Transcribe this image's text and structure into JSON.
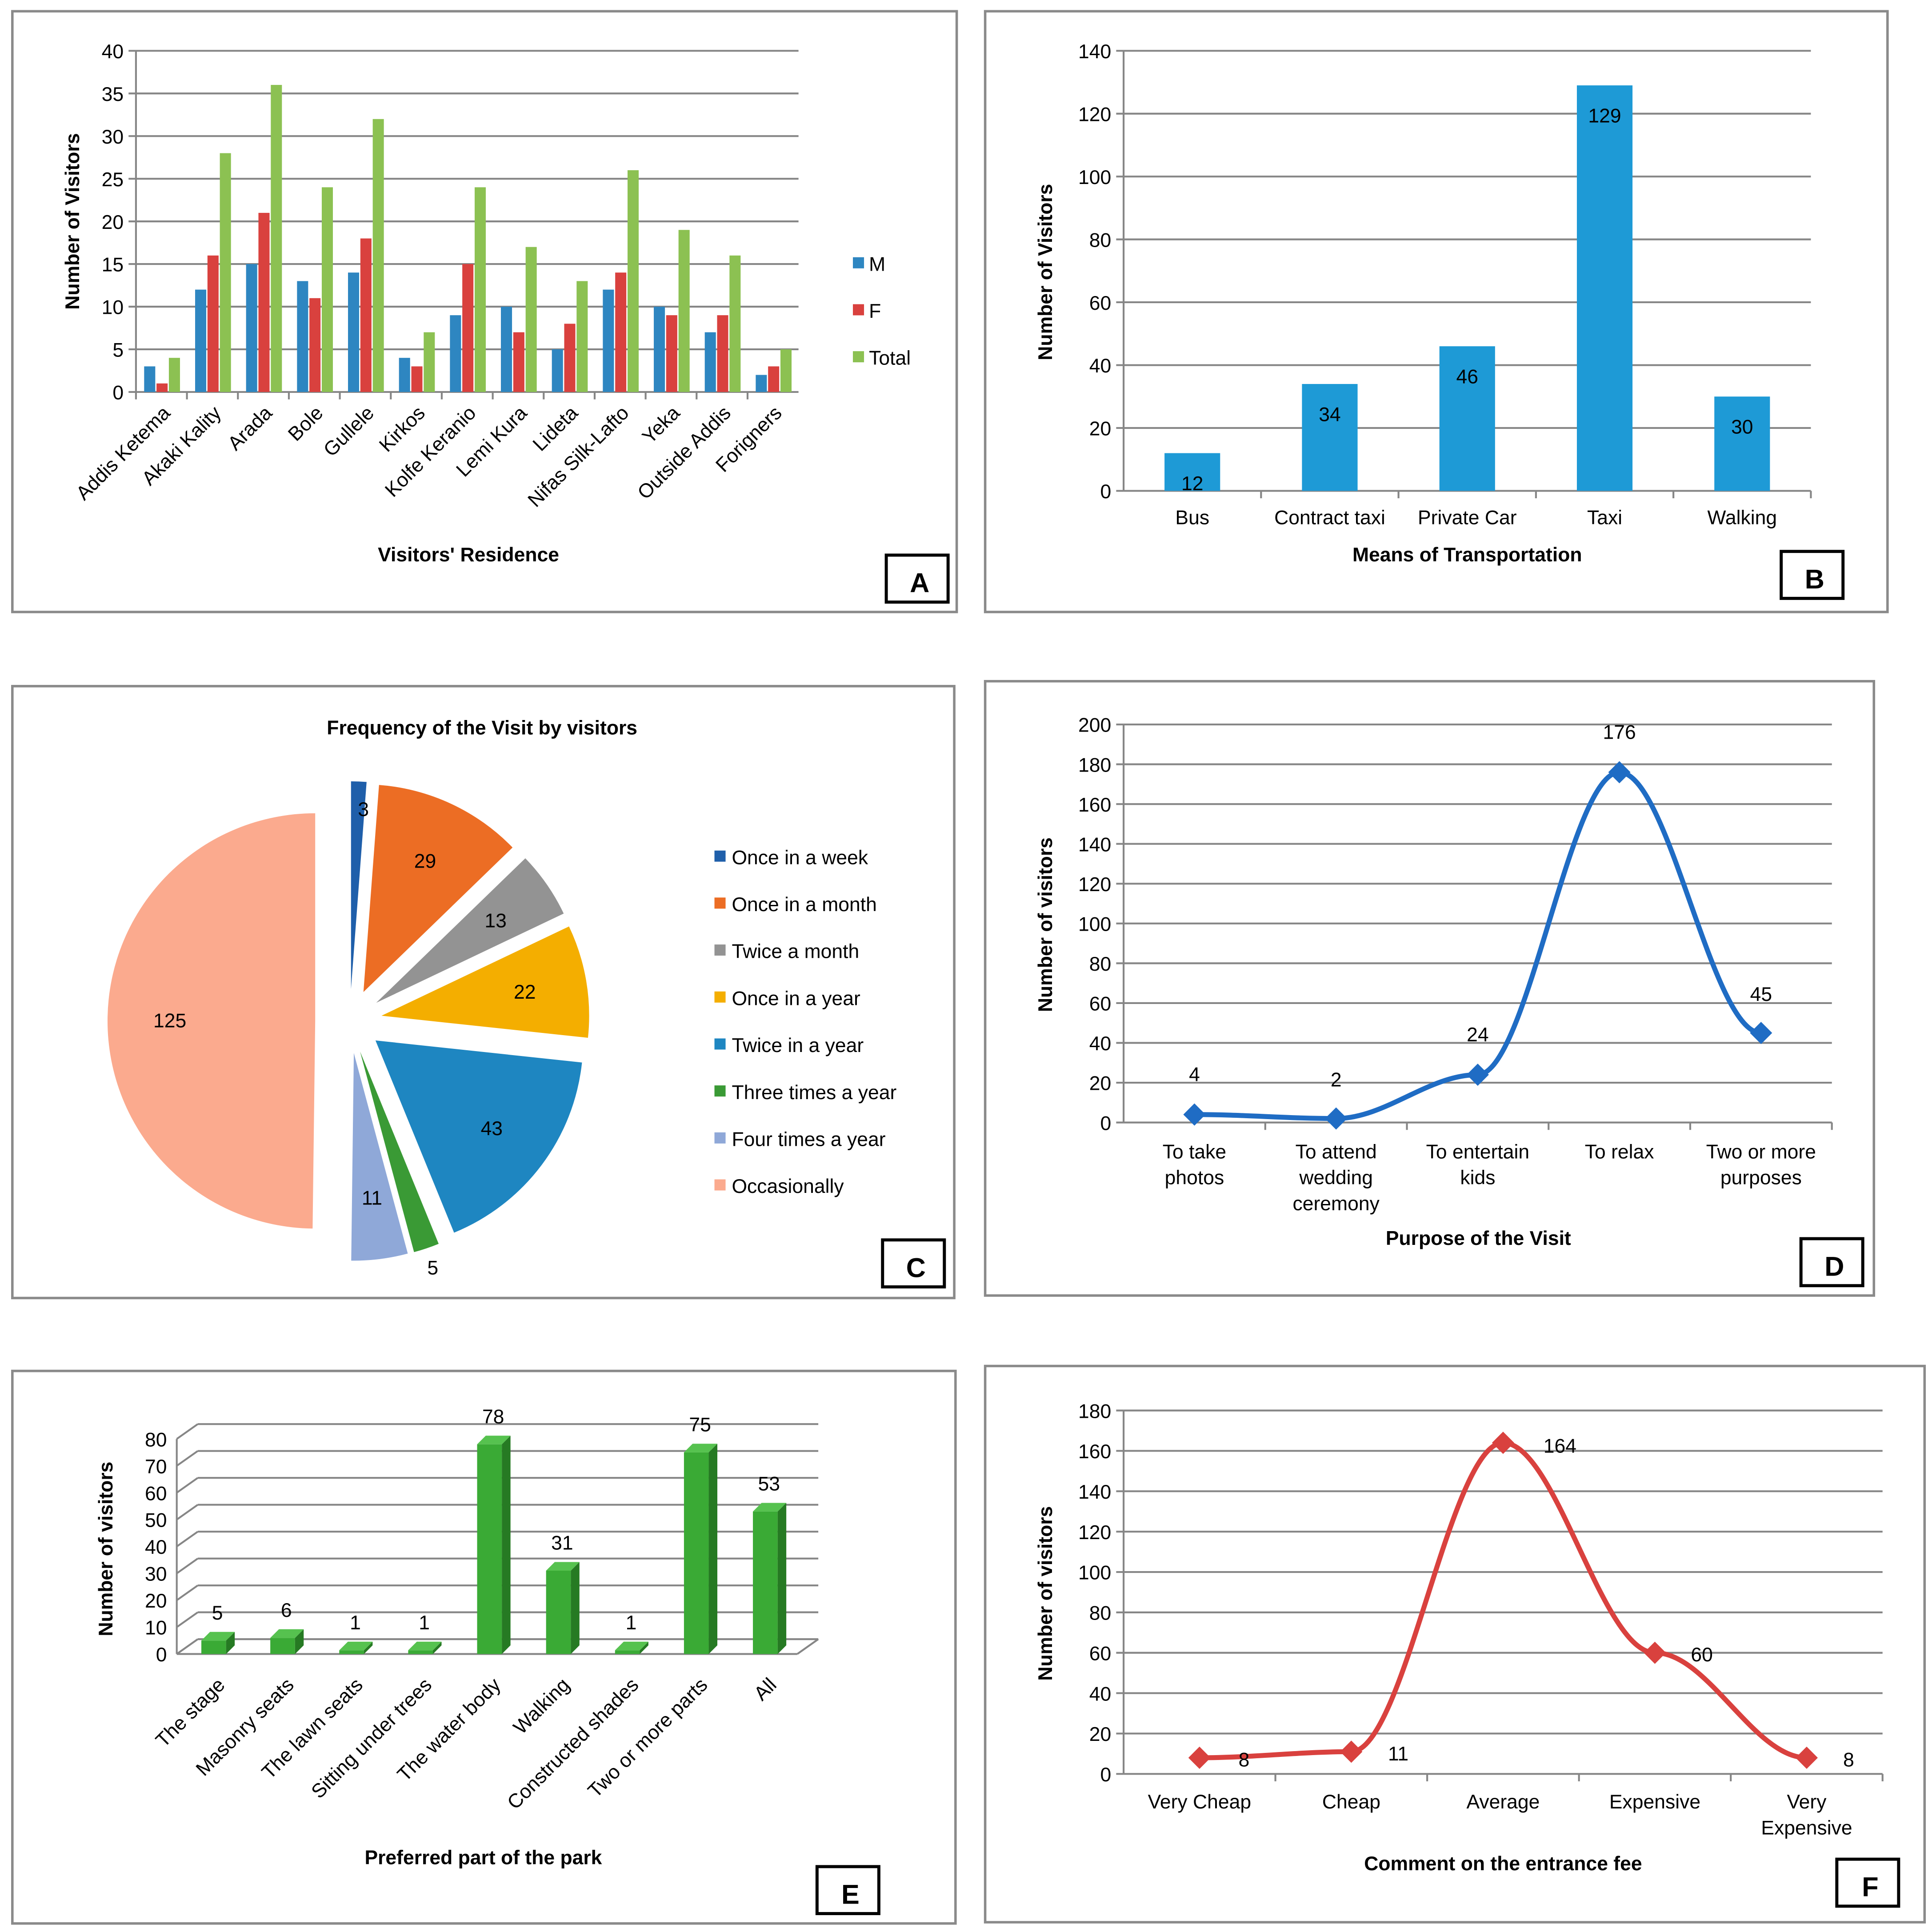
{
  "colors": {
    "male": "#2E86C1",
    "female": "#D9413E",
    "total": "#8CC152",
    "transport_bar": "#1E9AD6",
    "purpose_line": "#1F6CC4",
    "fee_line": "#D9413E",
    "park_bar": "#3AAA35",
    "park_bar_dark": "#267A23",
    "grid": "#868686",
    "panel_border": "#8a8a8a"
  },
  "chart_data": [
    {
      "id": "A",
      "type": "bar",
      "panel_label": "A",
      "title": "",
      "xlabel": "Visitors' Residence",
      "ylabel": "Number of Visitors",
      "ylim": [
        0,
        40
      ],
      "yticks": [
        "0",
        "5",
        "10",
        "15",
        "20",
        "25",
        "30",
        "35",
        "40"
      ],
      "categories": [
        "Addis Ketema",
        "Akaki Kality",
        "Arada",
        "Bole",
        "Gullele",
        "Kirkos",
        "Kolfe Keranio",
        "Lemi Kura",
        "Lideta",
        "Nifas Silk-Lafto",
        "Yeka",
        "Outside Addis",
        "Forigners"
      ],
      "series": [
        {
          "name": "M",
          "values": [
            3,
            12,
            15,
            13,
            14,
            4,
            9,
            10,
            5,
            12,
            10,
            7,
            2
          ]
        },
        {
          "name": "F",
          "values": [
            1,
            16,
            21,
            11,
            18,
            3,
            15,
            7,
            8,
            14,
            9,
            9,
            3
          ]
        },
        {
          "name": "Total",
          "values": [
            4,
            28,
            36,
            24,
            32,
            7,
            24,
            17,
            13,
            26,
            19,
            16,
            5
          ]
        }
      ],
      "legend": "right"
    },
    {
      "id": "B",
      "type": "bar",
      "panel_label": "B",
      "title": "",
      "xlabel": "Means of Transportation",
      "ylabel": "Number of Visitors",
      "ylim": [
        0,
        140
      ],
      "yticks": [
        "0",
        "20",
        "40",
        "60",
        "80",
        "100",
        "120",
        "140"
      ],
      "categories": [
        "Bus",
        "Contract taxi",
        "Private Car",
        "Taxi",
        "Walking"
      ],
      "values": [
        12,
        34,
        46,
        129,
        30
      ],
      "data_labels": [
        "12",
        "34",
        "46",
        "129",
        "30"
      ]
    },
    {
      "id": "C",
      "type": "pie",
      "panel_label": "C",
      "title": "Frequency of the Visit by visitors",
      "categories": [
        "Once in a week",
        "Once in a month",
        "Twice a month",
        "Once in a year",
        "Twice in a year",
        "Three times a year",
        "Four times a year",
        "Occasionally"
      ],
      "values": [
        3,
        29,
        13,
        22,
        43,
        5,
        11,
        125
      ],
      "data_labels": [
        "3",
        "29",
        "13",
        "22",
        "43",
        "5",
        "11",
        "125"
      ],
      "slice_colors": [
        "#1F5FAA",
        "#EC6D24",
        "#939393",
        "#F4AE00",
        "#1E86C1",
        "#3A9A35",
        "#8FA8D8",
        "#FBAA8E"
      ],
      "legend": "right"
    },
    {
      "id": "D",
      "type": "line",
      "panel_label": "D",
      "title": "",
      "xlabel": "Purpose of the Visit",
      "ylabel": "Number of visitors",
      "ylim": [
        0,
        200
      ],
      "yticks": [
        "0",
        "20",
        "40",
        "60",
        "80",
        "100",
        "120",
        "140",
        "160",
        "180",
        "200"
      ],
      "categories": [
        [
          "To take",
          "photos"
        ],
        [
          "To attend",
          "wedding",
          "ceremony"
        ],
        [
          "To entertain",
          "kids"
        ],
        [
          "To relax"
        ],
        [
          "Two or more",
          "purposes"
        ]
      ],
      "values": [
        4,
        2,
        24,
        176,
        45
      ],
      "data_labels": [
        "4",
        "2",
        "24",
        "176",
        "45"
      ]
    },
    {
      "id": "E",
      "type": "bar",
      "panel_label": "E",
      "title": "",
      "xlabel": "Preferred part of the park",
      "ylabel": "Number of visitors",
      "ylim": [
        0,
        80
      ],
      "yticks": [
        "0",
        "10",
        "20",
        "30",
        "40",
        "50",
        "60",
        "70",
        "80"
      ],
      "categories": [
        "The stage",
        "Masonry seats",
        "The lawn  seats",
        "Sitting under trees",
        "The water body",
        "Walking",
        "Constructed shades",
        "Two or more parts",
        "All"
      ],
      "values": [
        5,
        6,
        1,
        1,
        78,
        31,
        1,
        75,
        53
      ],
      "data_labels": [
        "5",
        "6",
        "1",
        "1",
        "78",
        "31",
        "1",
        "75",
        "53"
      ]
    },
    {
      "id": "F",
      "type": "line",
      "panel_label": "F",
      "title": "",
      "xlabel": "Comment on the entrance fee",
      "ylabel": "Number of visitors",
      "ylim": [
        0,
        180
      ],
      "yticks": [
        "0",
        "20",
        "40",
        "60",
        "80",
        "100",
        "120",
        "140",
        "160",
        "180"
      ],
      "categories": [
        [
          "Very Cheap"
        ],
        [
          "Cheap"
        ],
        [
          "Average"
        ],
        [
          "Expensive"
        ],
        [
          "Very",
          "Expensive"
        ]
      ],
      "values": [
        8,
        11,
        164,
        60,
        8
      ],
      "data_labels": [
        "8",
        "11",
        "164",
        "60",
        "8"
      ]
    }
  ]
}
